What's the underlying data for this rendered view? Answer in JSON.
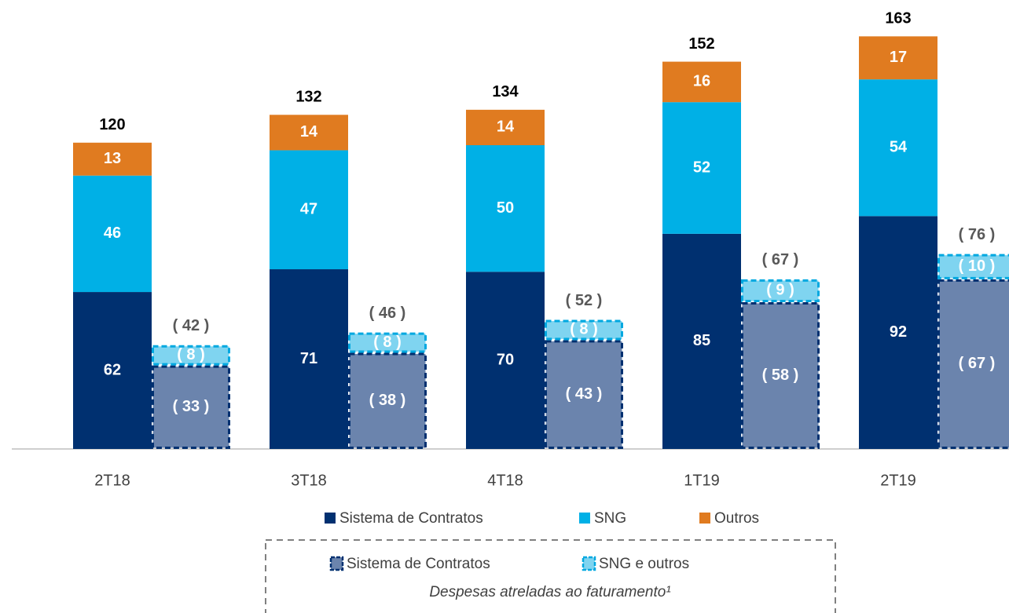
{
  "chart_data": {
    "type": "stacked_bar",
    "categories": [
      "2T18",
      "3T18",
      "4T18",
      "1T19",
      "2T19"
    ],
    "series": [
      {
        "name": "Sistema de Contratos",
        "color": "#003070",
        "values": [
          62,
          71,
          70,
          85,
          92
        ]
      },
      {
        "name": "SNG",
        "color": "#00b0e6",
        "values": [
          46,
          47,
          50,
          52,
          54
        ]
      },
      {
        "name": "Outros",
        "color": "#e07b20",
        "values": [
          13,
          14,
          14,
          16,
          17
        ]
      }
    ],
    "totals": [
      120,
      132,
      134,
      152,
      163
    ],
    "expense_series": [
      {
        "name": "Sistema de Contratos",
        "color": "#6b84ad",
        "border": "#003070",
        "values": [
          33,
          38,
          43,
          58,
          67
        ],
        "value_labels": [
          "( 33 )",
          "( 38 )",
          "( 43 )",
          "( 58 )",
          "( 67 )"
        ]
      },
      {
        "name": "SNG e outros",
        "color": "#7fd4f0",
        "border": "#00a8e0",
        "values": [
          8,
          8,
          8,
          9,
          10
        ],
        "value_labels": [
          "( 8 )",
          "( 8 )",
          "( 8 )",
          "( 9 )",
          "( 10 )"
        ]
      }
    ],
    "expense_totals": [
      42,
      46,
      52,
      67,
      76
    ],
    "expense_total_labels": [
      "( 42 )",
      "( 46 )",
      "( 52 )",
      "( 67 )",
      "( 76 )"
    ],
    "expense_legend_caption": "Despesas atreladas ao faturamento¹"
  }
}
